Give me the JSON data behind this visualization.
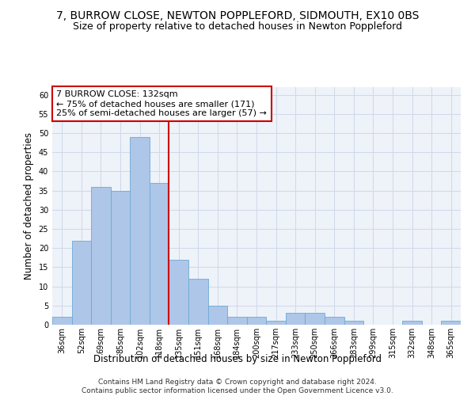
{
  "title": "7, BURROW CLOSE, NEWTON POPPLEFORD, SIDMOUTH, EX10 0BS",
  "subtitle": "Size of property relative to detached houses in Newton Poppleford",
  "xlabel": "Distribution of detached houses by size in Newton Poppleford",
  "ylabel": "Number of detached properties",
  "categories": [
    "36sqm",
    "52sqm",
    "69sqm",
    "85sqm",
    "102sqm",
    "118sqm",
    "135sqm",
    "151sqm",
    "168sqm",
    "184sqm",
    "200sqm",
    "217sqm",
    "233sqm",
    "250sqm",
    "266sqm",
    "283sqm",
    "299sqm",
    "315sqm",
    "332sqm",
    "348sqm",
    "365sqm"
  ],
  "values": [
    2,
    22,
    36,
    35,
    49,
    37,
    17,
    12,
    5,
    2,
    2,
    1,
    3,
    3,
    2,
    1,
    0,
    0,
    1,
    0,
    1
  ],
  "bar_color": "#aec6e8",
  "bar_edge_color": "#6aaad4",
  "vline_x": 5.5,
  "vline_color": "#cc0000",
  "annotation_text": "7 BURROW CLOSE: 132sqm\n← 75% of detached houses are smaller (171)\n25% of semi-detached houses are larger (57) →",
  "annotation_box_color": "#ffffff",
  "annotation_box_edge_color": "#cc0000",
  "ylim": [
    0,
    62
  ],
  "yticks": [
    0,
    5,
    10,
    15,
    20,
    25,
    30,
    35,
    40,
    45,
    50,
    55,
    60
  ],
  "grid_color": "#d0d8e8",
  "background_color": "#eef2f9",
  "footer": "Contains HM Land Registry data © Crown copyright and database right 2024.\nContains public sector information licensed under the Open Government Licence v3.0.",
  "title_fontsize": 10,
  "subtitle_fontsize": 9,
  "xlabel_fontsize": 8.5,
  "ylabel_fontsize": 8.5,
  "tick_fontsize": 7,
  "annotation_fontsize": 8,
  "footer_fontsize": 6.5
}
